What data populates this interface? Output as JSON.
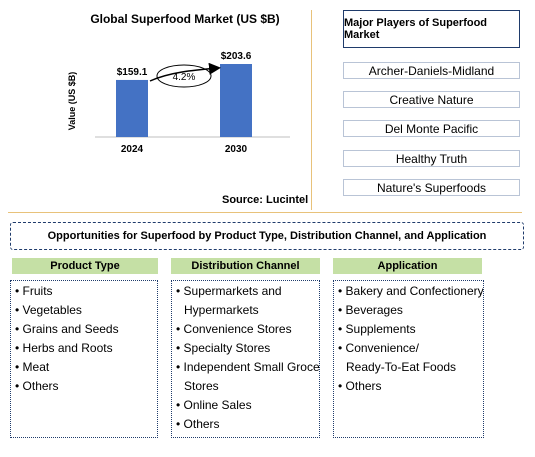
{
  "chart_data": {
    "type": "bar",
    "title": "Global Superfood Market (US $B)",
    "ylabel": "Value (US $B)",
    "categories": [
      "2024",
      "2030"
    ],
    "values": [
      159.1,
      203.6
    ],
    "data_labels": [
      "$159.1",
      "$203.6"
    ],
    "growth_label": "4.2%",
    "source": "Source: Lucintel",
    "bar_color": "#4472c4",
    "ylim": [
      0,
      220
    ],
    "grid": false
  },
  "players": {
    "title": "Major Players of Superfood Market",
    "items": [
      "Archer-Daniels-Midland",
      "Creative Nature",
      "Del Monte Pacific",
      "Healthy Truth",
      "Nature's Superfoods"
    ]
  },
  "opportunities": {
    "title": "Opportunities for Superfood by Product Type, Distribution Channel, and Application",
    "columns": [
      {
        "heading": "Product Type",
        "lines": [
          "• Fruits",
          "• Vegetables",
          "• Grains and Seeds",
          "• Herbs and Roots",
          "• Meat",
          "• Others"
        ]
      },
      {
        "heading": "Distribution Channel",
        "lines": [
          "• Supermarkets and",
          "  Hypermarkets",
          "• Convenience Stores",
          "• Specialty Stores",
          "• Independent Small Grocery",
          "  Stores",
          "• Online Sales",
          "• Others"
        ]
      },
      {
        "heading": "Application",
        "lines": [
          "• Bakery and Confectionery",
          "• Beverages",
          "• Supplements",
          "• Convenience/",
          "  Ready-To-Eat Foods",
          "• Others"
        ]
      }
    ]
  }
}
